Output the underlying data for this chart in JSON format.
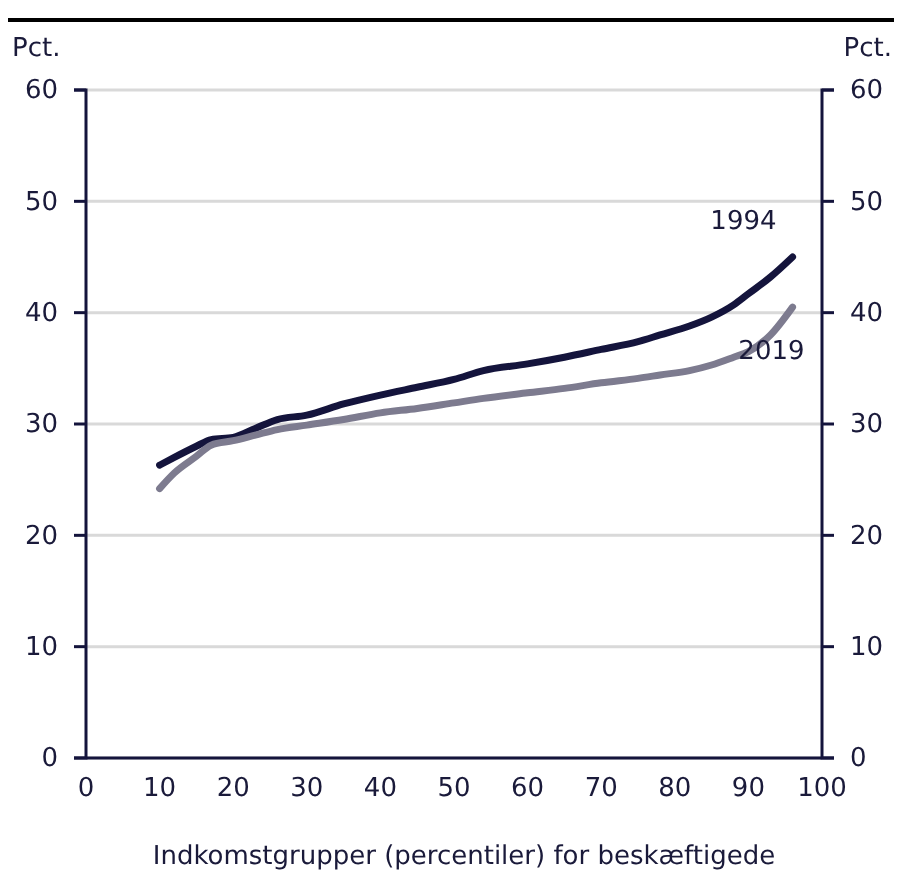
{
  "chart_data": {
    "type": "line",
    "xlabel": "Indkomstgrupper (percentiler) for beskæftigede",
    "ylabel": "Pct.",
    "y2label": "Pct.",
    "xlim": [
      0,
      100
    ],
    "xticks": [
      0,
      10,
      20,
      30,
      40,
      50,
      60,
      70,
      80,
      90,
      100
    ],
    "ylim": [
      0,
      60
    ],
    "yticks": [
      0,
      10,
      20,
      30,
      40,
      50,
      60
    ],
    "y2lim": [
      0,
      60
    ],
    "y2ticks": [
      0,
      10,
      20,
      30,
      40,
      50,
      60
    ],
    "grid": "y",
    "legend": false,
    "line_style": "solid",
    "marker": "none",
    "series": [
      {
        "name": "1994",
        "color": "#14143c",
        "x": [
          10,
          12,
          15,
          17,
          20,
          23,
          26,
          30,
          35,
          40,
          45,
          50,
          54,
          60,
          65,
          70,
          75,
          78,
          82,
          85,
          88,
          90,
          93,
          96
        ],
        "values": [
          26.3,
          27,
          28,
          28.6,
          28.8,
          29.6,
          30.4,
          30.8,
          31.8,
          32.6,
          33.3,
          34,
          34.8,
          35.4,
          36,
          36.7,
          37.4,
          38,
          38.8,
          39.6,
          40.7,
          41.7,
          43.2,
          45
        ]
      },
      {
        "name": "2019",
        "color": "#7d7b8f",
        "x": [
          10,
          12,
          15,
          17,
          20,
          23,
          26,
          30,
          35,
          40,
          45,
          50,
          54,
          60,
          65,
          70,
          75,
          78,
          82,
          85,
          88,
          90,
          93,
          96
        ],
        "values": [
          24.2,
          25.6,
          27.1,
          28.1,
          28.5,
          29,
          29.5,
          29.9,
          30.4,
          31,
          31.4,
          31.9,
          32.3,
          32.8,
          33.2,
          33.7,
          34.1,
          34.4,
          34.8,
          35.3,
          36,
          36.5,
          38,
          40.5
        ]
      }
    ]
  }
}
